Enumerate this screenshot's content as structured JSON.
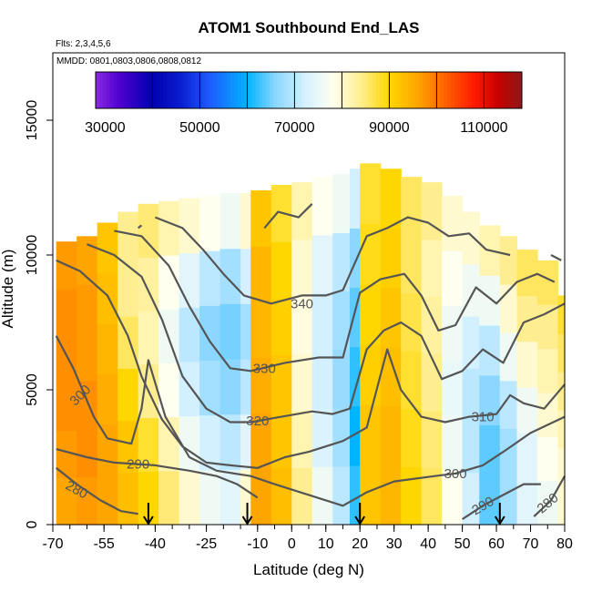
{
  "chart_data": {
    "type": "heatmap",
    "title": "ATOM1 Southbound End_LAS",
    "subtitle_flights": "Flts: 2,3,4,5,6",
    "subtitle_dates": "MMDD: 0801,0803,0806,0808,0812",
    "xlabel": "Latitude (deg N)",
    "ylabel": "Altitude (m)",
    "xlim": [
      -70,
      80
    ],
    "ylim": [
      0,
      17500
    ],
    "x_ticks": [
      -70,
      -55,
      -40,
      -25,
      -10,
      0,
      10,
      20,
      30,
      40,
      50,
      60,
      70,
      80
    ],
    "y_ticks": [
      0,
      5000,
      10000,
      15000
    ],
    "colorbar": {
      "range": [
        28000,
        118000
      ],
      "tick_values": [
        30000,
        50000,
        70000,
        90000,
        110000
      ],
      "tick_labels": [
        "30000",
        "50000",
        "70000",
        "90000",
        "110000"
      ],
      "stops": [
        {
          "v": 28000,
          "color": "#8a2be2"
        },
        {
          "v": 33000,
          "color": "#5000d0"
        },
        {
          "v": 40000,
          "color": "#0000b0"
        },
        {
          "v": 46000,
          "color": "#0a1ed0"
        },
        {
          "v": 52000,
          "color": "#1e5aff"
        },
        {
          "v": 60000,
          "color": "#00b4ff"
        },
        {
          "v": 66000,
          "color": "#8cd7ff"
        },
        {
          "v": 72000,
          "color": "#d2f0ff"
        },
        {
          "v": 78000,
          "color": "#fffff0"
        },
        {
          "v": 84000,
          "color": "#ffee90"
        },
        {
          "v": 90000,
          "color": "#ffd700"
        },
        {
          "v": 96000,
          "color": "#ffa500"
        },
        {
          "v": 102000,
          "color": "#ff6000"
        },
        {
          "v": 108000,
          "color": "#ff1a00"
        },
        {
          "v": 113000,
          "color": "#c80000"
        },
        {
          "v": 118000,
          "color": "#8b1a1a"
        }
      ]
    },
    "columns": [
      {
        "lat": [
          -69,
          -63
        ],
        "top": 10500,
        "values": [
          96000,
          97000,
          98000,
          98000,
          98000,
          97000
        ]
      },
      {
        "lat": [
          -63,
          -57
        ],
        "top": 10700,
        "values": [
          97000,
          98000,
          98000,
          97000,
          97000,
          96000
        ]
      },
      {
        "lat": [
          -57,
          -51
        ],
        "top": 11200,
        "values": [
          96000,
          96000,
          95000,
          94000,
          93000,
          92000
        ]
      },
      {
        "lat": [
          -51,
          -45
        ],
        "top": 11600,
        "values": [
          93000,
          92000,
          90000,
          86000,
          84000,
          84000
        ]
      },
      {
        "lat": [
          -45,
          -39
        ],
        "top": 11900,
        "values": [
          90000,
          88000,
          84000,
          82000,
          83000,
          85000
        ]
      },
      {
        "lat": [
          -39,
          -33
        ],
        "top": 12000,
        "values": [
          85000,
          82000,
          78000,
          76000,
          78000,
          82000
        ]
      },
      {
        "lat": [
          -33,
          -27
        ],
        "top": 12100,
        "values": [
          80000,
          76000,
          72000,
          70000,
          74000,
          80000
        ]
      },
      {
        "lat": [
          -27,
          -21
        ],
        "top": 12200,
        "values": [
          76000,
          72000,
          68000,
          66000,
          70000,
          78000
        ]
      },
      {
        "lat": [
          -21,
          -15
        ],
        "top": 12300,
        "values": [
          74000,
          70000,
          66000,
          65000,
          68000,
          76000
        ]
      },
      {
        "lat": [
          -15,
          -12
        ],
        "top": 12300,
        "values": [
          80000,
          74000,
          70000,
          68000,
          72000,
          80000
        ]
      },
      {
        "lat": [
          -12,
          -6
        ],
        "top": 12400,
        "values": [
          96000,
          96000,
          95000,
          94000,
          94000,
          92000
        ]
      },
      {
        "lat": [
          -6,
          0
        ],
        "top": 12600,
        "values": [
          93000,
          92000,
          92000,
          91000,
          90000,
          88000
        ]
      },
      {
        "lat": [
          0,
          6
        ],
        "top": 12700,
        "values": [
          84000,
          82000,
          80000,
          79000,
          80000,
          82000
        ]
      },
      {
        "lat": [
          6,
          12
        ],
        "top": 12900,
        "values": [
          76000,
          73000,
          72000,
          72000,
          74000,
          78000
        ]
      },
      {
        "lat": [
          12,
          17
        ],
        "top": 13000,
        "values": [
          70000,
          68000,
          67000,
          68000,
          70000,
          76000
        ]
      },
      {
        "lat": [
          17,
          20
        ],
        "top": 13200,
        "values": [
          62000,
          60000,
          62000,
          64000,
          66000,
          72000
        ]
      },
      {
        "lat": [
          20,
          26
        ],
        "top": 13400,
        "values": [
          92000,
          92000,
          91000,
          90000,
          89000,
          88000
        ]
      },
      {
        "lat": [
          26,
          32
        ],
        "top": 13200,
        "values": [
          94000,
          94000,
          93000,
          92000,
          91000,
          90000
        ]
      },
      {
        "lat": [
          32,
          38
        ],
        "top": 12900,
        "values": [
          90000,
          89000,
          88000,
          87000,
          86000,
          86000
        ]
      },
      {
        "lat": [
          38,
          44
        ],
        "top": 12700,
        "values": [
          86000,
          85000,
          84000,
          83000,
          82000,
          84000
        ]
      },
      {
        "lat": [
          44,
          50
        ],
        "top": 12200,
        "values": [
          78000,
          76000,
          75000,
          76000,
          78000,
          80000
        ]
      },
      {
        "lat": [
          50,
          55
        ],
        "top": 11600,
        "values": [
          72000,
          70000,
          70000,
          72000,
          76000,
          80000
        ]
      },
      {
        "lat": [
          55,
          61
        ],
        "top": 11100,
        "values": [
          64000,
          64000,
          66000,
          70000,
          76000,
          82000
        ]
      },
      {
        "lat": [
          61,
          66
        ],
        "top": 10700,
        "values": [
          68000,
          68000,
          70000,
          76000,
          80000,
          84000
        ]
      },
      {
        "lat": [
          66,
          72
        ],
        "top": 10200,
        "values": [
          74000,
          74000,
          76000,
          80000,
          84000,
          86000
        ]
      },
      {
        "lat": [
          72,
          78
        ],
        "top": 9800,
        "values": [
          76000,
          78000,
          80000,
          82000,
          84000,
          86000
        ]
      },
      {
        "lat": [
          78,
          80
        ],
        "top": 8500,
        "values": [
          80000,
          80000,
          82000,
          84000,
          86000,
          88000
        ]
      }
    ],
    "contours": [
      {
        "label": "280",
        "label_at": [
          -63,
          1300
        ],
        "label_angle": 28,
        "points": [
          [
            -69,
            2100
          ],
          [
            -63,
            1500
          ],
          [
            -56,
            900
          ],
          [
            -50,
            500
          ],
          [
            -45,
            400
          ]
        ]
      },
      {
        "label": "290",
        "label_at": [
          -45,
          2250
        ],
        "label_angle": 0,
        "points": [
          [
            -69,
            2800
          ],
          [
            -60,
            2500
          ],
          [
            -52,
            2300
          ],
          [
            -40,
            2200
          ],
          [
            -30,
            2000
          ],
          [
            -22,
            1800
          ],
          [
            -16,
            1500
          ],
          [
            -10,
            1000
          ]
        ]
      },
      {
        "label": "290",
        "label_at": [
          56,
          700
        ],
        "label_angle": -30,
        "points": [
          [
            50,
            200
          ],
          [
            56,
            700
          ],
          [
            62,
            1100
          ],
          [
            68,
            1500
          ],
          [
            73,
            1500
          ]
        ]
      },
      {
        "label": "280",
        "label_at": [
          75,
          800
        ],
        "label_angle": -40,
        "points": [
          [
            71,
            300
          ],
          [
            76,
            900
          ],
          [
            80,
            1800
          ]
        ]
      },
      {
        "label": "300",
        "label_at": [
          -62,
          4800
        ],
        "label_angle": -45,
        "points": [
          [
            -69,
            7000
          ],
          [
            -64,
            5800
          ],
          [
            -58,
            4000
          ],
          [
            -54,
            3200
          ],
          [
            -47,
            3000
          ],
          [
            -44,
            4300
          ],
          [
            -42,
            6100
          ],
          [
            -37,
            4000
          ],
          [
            -30,
            2500
          ],
          [
            -22,
            2000
          ],
          [
            -12,
            1800
          ],
          [
            -5,
            1500
          ],
          [
            5,
            1100
          ],
          [
            15,
            700
          ],
          [
            22,
            1200
          ],
          [
            30,
            1600
          ],
          [
            42,
            1800
          ],
          [
            48,
            1900
          ],
          [
            56,
            2200
          ],
          [
            62,
            2700
          ],
          [
            70,
            3400
          ],
          [
            80,
            4000
          ]
        ]
      },
      {
        "label": "300",
        "label_at": [
          48,
          1900
        ],
        "label_angle": 0,
        "points": [
          [
            48,
            1900
          ],
          [
            49,
            1900
          ]
        ]
      },
      {
        "label": "310",
        "label_at": [
          56,
          4000
        ],
        "label_angle": 0,
        "points": [
          [
            -69,
            9800
          ],
          [
            -62,
            9400
          ],
          [
            -54,
            8500
          ],
          [
            -48,
            7000
          ],
          [
            -44,
            5500
          ],
          [
            -38,
            3900
          ],
          [
            -32,
            2900
          ],
          [
            -25,
            2300
          ],
          [
            -18,
            2200
          ],
          [
            -10,
            2100
          ],
          [
            -2,
            2500
          ],
          [
            5,
            2700
          ],
          [
            15,
            3100
          ],
          [
            22,
            3600
          ],
          [
            28,
            6500
          ],
          [
            32,
            5000
          ],
          [
            38,
            4000
          ],
          [
            45,
            3800
          ],
          [
            52,
            4000
          ],
          [
            60,
            4100
          ],
          [
            64,
            4800
          ],
          [
            68,
            4500
          ],
          [
            74,
            4300
          ],
          [
            80,
            5200
          ]
        ]
      },
      {
        "label": "320",
        "label_at": [
          -10,
          3850
        ],
        "label_angle": 0,
        "points": [
          [
            -60,
            10400
          ],
          [
            -52,
            10000
          ],
          [
            -44,
            9200
          ],
          [
            -38,
            7600
          ],
          [
            -32,
            5500
          ],
          [
            -25,
            4300
          ],
          [
            -18,
            3800
          ],
          [
            -12,
            3800
          ],
          [
            -3,
            4000
          ],
          [
            6,
            4200
          ],
          [
            12,
            4100
          ],
          [
            17,
            4300
          ],
          [
            22,
            6500
          ],
          [
            27,
            7200
          ],
          [
            32,
            7500
          ],
          [
            38,
            7000
          ],
          [
            44,
            5400
          ],
          [
            50,
            5700
          ],
          [
            56,
            6500
          ],
          [
            62,
            6000
          ],
          [
            68,
            7500
          ],
          [
            74,
            7800
          ],
          [
            80,
            8200
          ]
        ]
      },
      {
        "label": "330",
        "label_at": [
          -8,
          5800
        ],
        "label_angle": 0,
        "points": [
          [
            -52,
            10900
          ],
          [
            -44,
            10700
          ],
          [
            -36,
            9600
          ],
          [
            -30,
            8100
          ],
          [
            -24,
            6800
          ],
          [
            -18,
            5800
          ],
          [
            -12,
            5700
          ],
          [
            -2,
            6000
          ],
          [
            8,
            6200
          ],
          [
            15,
            6200
          ],
          [
            20,
            8600
          ],
          [
            26,
            9100
          ],
          [
            33,
            9300
          ],
          [
            38,
            8500
          ],
          [
            43,
            7200
          ],
          [
            48,
            7400
          ],
          [
            54,
            8800
          ],
          [
            60,
            8200
          ],
          [
            66,
            9000
          ],
          [
            72,
            9300
          ],
          [
            77,
            9000
          ]
        ]
      },
      {
        "label": "340",
        "label_at": [
          3,
          8200
        ],
        "label_angle": 0,
        "points": [
          [
            -40,
            11400
          ],
          [
            -32,
            11000
          ],
          [
            -26,
            10200
          ],
          [
            -20,
            9300
          ],
          [
            -14,
            8500
          ],
          [
            -6,
            8200
          ],
          [
            3,
            8500
          ],
          [
            10,
            8500
          ],
          [
            15,
            8700
          ],
          [
            22,
            10700
          ],
          [
            28,
            11000
          ],
          [
            34,
            11400
          ],
          [
            40,
            11200
          ],
          [
            46,
            10700
          ],
          [
            52,
            10800
          ],
          [
            57,
            10200
          ],
          [
            64,
            10000
          ]
        ]
      },
      {
        "label": "",
        "label_at": [
          0,
          0
        ],
        "label_angle": 0,
        "points": [
          [
            -8,
            11000
          ],
          [
            -4,
            11600
          ],
          [
            2,
            11400
          ],
          [
            6,
            11900
          ]
        ]
      },
      {
        "label": "",
        "label_at": [
          0,
          0
        ],
        "label_angle": 0,
        "points": [
          [
            -45,
            11000
          ],
          [
            -44,
            11100
          ]
        ]
      },
      {
        "label": "",
        "label_at": [
          0,
          0
        ],
        "label_angle": 0,
        "points": [
          [
            76,
            10000
          ],
          [
            79,
            9800
          ]
        ]
      }
    ],
    "arrows_lat": [
      -42,
      -13,
      20,
      61
    ]
  }
}
